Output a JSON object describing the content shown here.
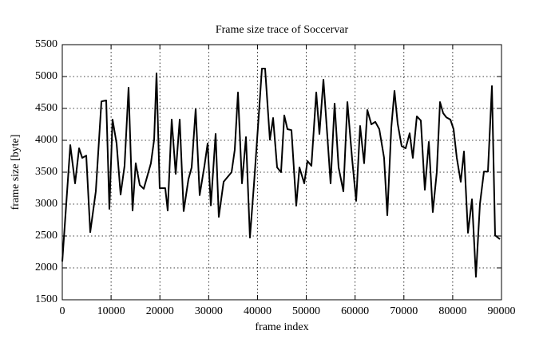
{
  "chart_data": {
    "type": "line",
    "title": "Frame size trace of Soccervar",
    "x_label": "frame index",
    "y_label": "frame size [byte]",
    "x": [
      0,
      1640,
      2620,
      3440,
      4090,
      4910,
      5730,
      6870,
      8020,
      9000,
      9650,
      10300,
      11130,
      11950,
      12760,
      13580,
      14400,
      15050,
      15870,
      16690,
      18160,
      18820,
      19310,
      19960,
      21100,
      21600,
      22420,
      23240,
      24060,
      24870,
      25850,
      26510,
      27330,
      28150,
      29130,
      29780,
      30440,
      31420,
      32070,
      33060,
      34690,
      35340,
      36000,
      36820,
      37640,
      38450,
      39270,
      40090,
      40910,
      41560,
      42540,
      43200,
      44020,
      44830,
      45490,
      46140,
      46960,
      47940,
      48600,
      49580,
      50240,
      51050,
      52040,
      52690,
      53510,
      54330,
      54980,
      55800,
      56620,
      57600,
      58420,
      59400,
      60220,
      61030,
      61850,
      62510,
      63330,
      64140,
      64960,
      65940,
      66600,
      67420,
      68070,
      68730,
      69540,
      70360,
      71180,
      71830,
      72650,
      73470,
      74290,
      75110,
      75920,
      76740,
      77400,
      78050,
      78710,
      79530,
      80180,
      80840,
      81650,
      82310,
      83130,
      83950,
      84760,
      85580,
      86400,
      87220,
      88040,
      88690,
      89670
    ],
    "series": [
      {
        "color": "#000000",
        "values": [
          2100,
          3925,
          3325,
          3875,
          3725,
          3760,
          2560,
          3200,
          4610,
          4625,
          2925,
          4325,
          3950,
          3150,
          3600,
          4825,
          2900,
          3640,
          3300,
          3240,
          3640,
          4010,
          5050,
          3250,
          3250,
          2900,
          4325,
          3475,
          4325,
          2890,
          3390,
          3575,
          4490,
          3140,
          3600,
          3950,
          2980,
          4100,
          2800,
          3350,
          3500,
          3850,
          4750,
          3325,
          4050,
          2475,
          3300,
          4200,
          5125,
          5125,
          4010,
          4350,
          3575,
          3500,
          4390,
          4175,
          4160,
          2975,
          3575,
          3325,
          3675,
          3600,
          4750,
          4100,
          4950,
          4050,
          3325,
          4575,
          3575,
          3200,
          4600,
          3700,
          3050,
          4225,
          3640,
          4475,
          4250,
          4290,
          4175,
          3725,
          2825,
          4200,
          4775,
          4260,
          3910,
          3875,
          4110,
          3725,
          4375,
          4310,
          3225,
          3975,
          2875,
          3500,
          4600,
          4425,
          4360,
          4325,
          4175,
          3725,
          3350,
          3825,
          2550,
          3075,
          1860,
          3000,
          3510,
          3510,
          4850,
          2510,
          2450
        ]
      }
    ],
    "xlim": [
      0,
      90000
    ],
    "xticks": [
      0,
      10000,
      20000,
      30000,
      40000,
      50000,
      60000,
      70000,
      80000,
      90000
    ],
    "ylim": [
      1500,
      5500
    ],
    "yticks": [
      1500,
      2000,
      2500,
      3000,
      3500,
      4000,
      4500,
      5000,
      5500
    ],
    "grid": true
  }
}
